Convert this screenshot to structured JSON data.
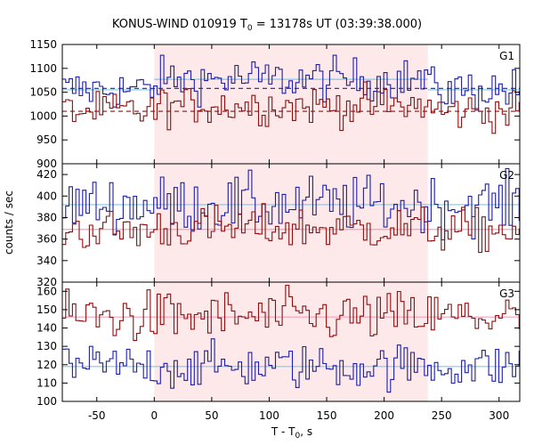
{
  "chart_data": {
    "type": "line",
    "title_pre": "KONUS-WIND 010919 T",
    "title_sub": "0",
    "title_post": " = 13178s UT (03:39:38.000)",
    "ylabel": "counts / sec",
    "xlabel_pre": "T - T",
    "xlabel_sub": "0",
    "xlabel_post": ", s",
    "xlim": [
      -80,
      318
    ],
    "x_ticks": [
      -50,
      0,
      50,
      100,
      150,
      200,
      250,
      300
    ],
    "highlight_interval": [
      0,
      238
    ],
    "bin_width": 2.944,
    "colors": {
      "highlight": "#fde8ea",
      "red_series": "#8b1010",
      "blue_series": "#1e1ea8",
      "mean_blue": "#7ec8f0",
      "mean_red": "#f4a0b8"
    },
    "panels": [
      {
        "name": "G1",
        "ylim": [
          900,
          1150
        ],
        "y_ticks": [
          900,
          950,
          1000,
          1050,
          1100,
          1150
        ],
        "series": [
          {
            "color": "blue",
            "mean": 1055,
            "mean_interval": 1077,
            "noise": 22
          },
          {
            "color": "red",
            "mean": 1010,
            "mean_interval": 1022,
            "noise": 20
          }
        ],
        "mean_lines": [
          {
            "from": -80,
            "to": 0,
            "value": 1055,
            "color": "#7ec8f0",
            "dash": false
          },
          {
            "from": 0,
            "to": 238,
            "value": 1077,
            "color": "#7ec8f0",
            "dash": false
          },
          {
            "from": 238,
            "to": 318,
            "value": 1055,
            "color": "#7ec8f0",
            "dash": false
          },
          {
            "from": -80,
            "to": 318,
            "value": 1010,
            "color": "#8b1010",
            "dash": true
          },
          {
            "from": -80,
            "to": 318,
            "value": 1058,
            "color": "#1e1ea8",
            "dash": true
          }
        ]
      },
      {
        "name": "G2",
        "ylim": [
          320,
          430
        ],
        "y_ticks": [
          320,
          340,
          360,
          380,
          400,
          420
        ],
        "series": [
          {
            "color": "blue",
            "mean": 392,
            "mean_interval": 392,
            "noise": 13
          },
          {
            "color": "red",
            "mean": 368,
            "mean_interval": 370,
            "noise": 10
          }
        ],
        "mean_lines": [
          {
            "from": -80,
            "to": 318,
            "value": 392,
            "color": "#7ec8f0",
            "dash": false
          },
          {
            "from": -80,
            "to": 318,
            "value": 369,
            "color": "#f4a0b8",
            "dash": false
          }
        ]
      },
      {
        "name": "G3",
        "ylim": [
          100,
          165
        ],
        "y_ticks": [
          100,
          110,
          120,
          130,
          140,
          150,
          160
        ],
        "series": [
          {
            "color": "red",
            "mean": 146,
            "mean_interval": 146,
            "noise": 7
          },
          {
            "color": "blue",
            "mean": 119,
            "mean_interval": 119,
            "noise": 6
          }
        ],
        "mean_lines": [
          {
            "from": -80,
            "to": 318,
            "value": 146,
            "color": "#f4a0b8",
            "dash": false
          },
          {
            "from": -80,
            "to": 318,
            "value": 119,
            "color": "#7ec8f0",
            "dash": false
          }
        ]
      }
    ]
  }
}
